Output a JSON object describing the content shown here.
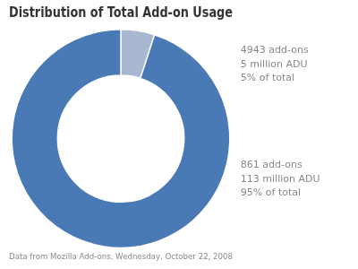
{
  "chart_data": {
    "type": "donut",
    "title": "Distribution of Total Add-on Usage",
    "values": [
      5,
      95
    ],
    "colors": [
      "#a8b8d0",
      "#4a7ab5"
    ],
    "annotations": [
      {
        "text": "4943 add-ons\n5 million ADU\n5% of total",
        "color": "#888888"
      },
      {
        "text": "861 add-ons\n113 million ADU\n95% of total",
        "color": "#888888"
      }
    ],
    "footnote": "Data from Mozilla Add-ons, Wednesday, October 22, 2008",
    "legend": false
  }
}
